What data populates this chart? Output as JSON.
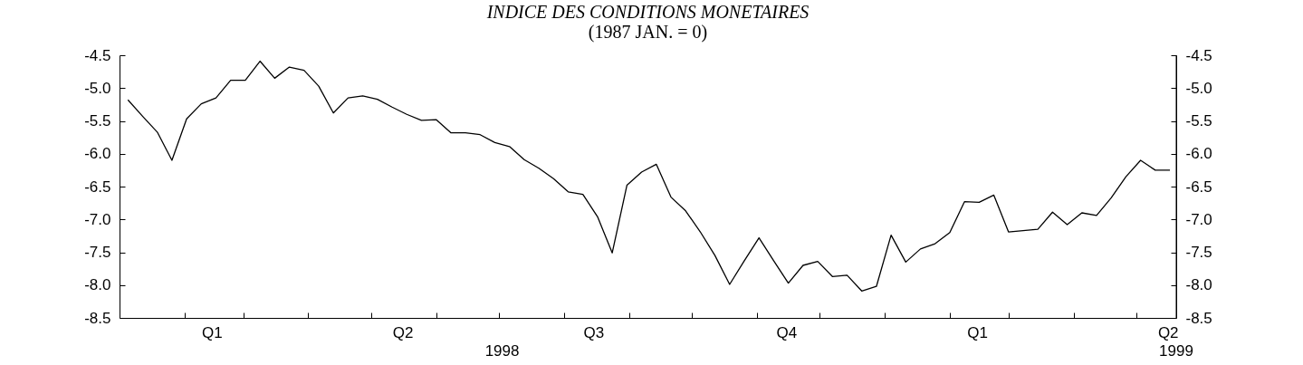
{
  "chart_data": {
    "type": "line",
    "title": "INDICE DES CONDITIONS MONETAIRES",
    "subtitle": "(1987 JAN. = 0)",
    "x": [
      "1998-01-05",
      "1998-01-12",
      "1998-01-19",
      "1998-01-26",
      "1998-02-02",
      "1998-02-09",
      "1998-02-16",
      "1998-02-23",
      "1998-03-02",
      "1998-03-09",
      "1998-03-16",
      "1998-03-23",
      "1998-03-30",
      "1998-04-06",
      "1998-04-13",
      "1998-04-20",
      "1998-04-27",
      "1998-05-04",
      "1998-05-11",
      "1998-05-18",
      "1998-05-25",
      "1998-06-01",
      "1998-06-08",
      "1998-06-15",
      "1998-06-22",
      "1998-06-29",
      "1998-07-06",
      "1998-07-13",
      "1998-07-20",
      "1998-07-27",
      "1998-08-03",
      "1998-08-10",
      "1998-08-17",
      "1998-08-24",
      "1998-08-31",
      "1998-09-07",
      "1998-09-14",
      "1998-09-21",
      "1998-09-28",
      "1998-10-05",
      "1998-10-12",
      "1998-10-19",
      "1998-10-26",
      "1998-11-02",
      "1998-11-09",
      "1998-11-16",
      "1998-11-23",
      "1998-11-30",
      "1998-12-07",
      "1998-12-14",
      "1998-12-21",
      "1998-12-28",
      "1999-01-04",
      "1999-01-11",
      "1999-01-18",
      "1999-01-25",
      "1999-02-01",
      "1999-02-08",
      "1999-02-15",
      "1999-02-22",
      "1999-03-01",
      "1999-03-08",
      "1999-03-15",
      "1999-03-22",
      "1999-03-29",
      "1999-04-05",
      "1999-04-12",
      "1999-04-19",
      "1999-04-26",
      "1999-05-03",
      "1999-05-10",
      "1999-05-17"
    ],
    "series": [
      {
        "color": "#000000",
        "values": [
          -5.18,
          -5.43,
          -5.67,
          -6.1,
          -5.47,
          -5.24,
          -5.15,
          -4.88,
          -4.88,
          -4.59,
          -4.85,
          -4.68,
          -4.73,
          -4.97,
          -5.38,
          -5.15,
          -5.12,
          -5.17,
          -5.29,
          -5.4,
          -5.49,
          -5.48,
          -5.68,
          -5.68,
          -5.71,
          -5.83,
          -5.89,
          -6.09,
          -6.22,
          -6.38,
          -6.58,
          -6.62,
          -6.96,
          -7.51,
          -6.48,
          -6.28,
          -6.16,
          -6.66,
          -6.87,
          -7.19,
          -7.55,
          -7.99,
          -7.63,
          -7.28,
          -7.63,
          -7.97,
          -7.7,
          -7.64,
          -7.87,
          -7.85,
          -8.09,
          -8.02,
          -7.24,
          -7.65,
          -7.45,
          -7.37,
          -7.2,
          -6.73,
          -6.74,
          -6.63,
          -7.19,
          -7.17,
          -7.15,
          -6.89,
          -7.08,
          -6.9,
          -6.94,
          -6.67,
          -6.35,
          -6.1,
          -6.25,
          -6.25
        ]
      }
    ],
    "xlim": [
      "1998-01-01",
      "1999-05-20"
    ],
    "xticks": [
      {
        "value": "1998-02-01",
        "label": null
      },
      {
        "value": "1998-02-14",
        "label": "Q1"
      },
      {
        "value": "1998-03-01",
        "label": null
      },
      {
        "value": "1998-04-01",
        "label": null
      },
      {
        "value": "1998-05-01",
        "label": null
      },
      {
        "value": "1998-05-16",
        "label": "Q2"
      },
      {
        "value": "1998-06-01",
        "label": null
      },
      {
        "value": "1998-07-01",
        "label": null
      },
      {
        "value": "1998-08-01",
        "label": null
      },
      {
        "value": "1998-08-15",
        "label": "Q3"
      },
      {
        "value": "1998-09-01",
        "label": null
      },
      {
        "value": "1998-10-01",
        "label": null
      },
      {
        "value": "1998-11-01",
        "label": null
      },
      {
        "value": "1998-11-15",
        "label": "Q4"
      },
      {
        "value": "1998-12-01",
        "label": null
      },
      {
        "value": "1999-01-01",
        "label": null
      },
      {
        "value": "1999-02-01",
        "label": null
      },
      {
        "value": "1999-02-14",
        "label": "Q1"
      },
      {
        "value": "1999-03-01",
        "label": null
      },
      {
        "value": "1999-04-01",
        "label": null
      },
      {
        "value": "1999-05-01",
        "label": null
      },
      {
        "value": "1999-05-16",
        "label": "Q2"
      }
    ],
    "annotations": [
      "1998",
      "1999"
    ],
    "ylim": [
      -8.5,
      -4.5
    ],
    "yticks": [
      {
        "value": -8.5,
        "label": "-8.5"
      },
      {
        "value": -8.0,
        "label": "-8.0"
      },
      {
        "value": -7.5,
        "label": "-7.5"
      },
      {
        "value": -7.0,
        "label": "-7.0"
      },
      {
        "value": -6.5,
        "label": "-6.5"
      },
      {
        "value": -6.0,
        "label": "-6.0"
      },
      {
        "value": -5.5,
        "label": "-5.5"
      },
      {
        "value": -5.0,
        "label": "-5.0"
      },
      {
        "value": -4.5,
        "label": "-4.5"
      }
    ],
    "y2lim": [
      -8.5,
      -4.5
    ],
    "y2ticks": [
      {
        "value": -8.5,
        "label": "-8.5"
      },
      {
        "value": -8.0,
        "label": "-8.0"
      },
      {
        "value": -7.5,
        "label": "-7.5"
      },
      {
        "value": -7.0,
        "label": "-7.0"
      },
      {
        "value": -6.5,
        "label": "-6.5"
      },
      {
        "value": -6.0,
        "label": "-6.0"
      },
      {
        "value": -5.5,
        "label": "-5.5"
      },
      {
        "value": -5.0,
        "label": "-5.0"
      },
      {
        "value": -4.5,
        "label": "-4.5"
      }
    ]
  }
}
